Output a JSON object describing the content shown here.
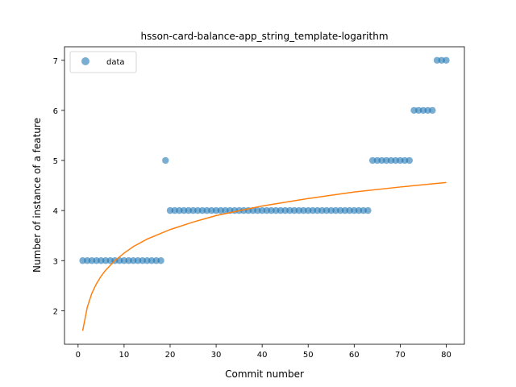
{
  "chart_data": {
    "type": "scatter",
    "title": "hsson-card-balance-app_string_template-logarithm",
    "xlabel": "Commit number",
    "ylabel": "Number of instance of a feature",
    "xlim": [
      -2.95,
      83.95
    ],
    "ylim": [
      1.33,
      7.27
    ],
    "xticks": [
      0,
      10,
      20,
      30,
      40,
      50,
      60,
      70,
      80
    ],
    "yticks": [
      2,
      3,
      4,
      5,
      6,
      7
    ],
    "legend": {
      "placement": "top-left",
      "entries": [
        "data"
      ]
    },
    "colors": {
      "data": "#1f77b4",
      "fit": "#ff7f0e"
    },
    "series": [
      {
        "name": "data",
        "kind": "scatter",
        "x": [
          1,
          2,
          3,
          4,
          5,
          6,
          7,
          8,
          9,
          10,
          11,
          12,
          13,
          14,
          15,
          16,
          17,
          18,
          19,
          20,
          21,
          22,
          23,
          24,
          25,
          26,
          27,
          28,
          29,
          30,
          31,
          32,
          33,
          34,
          35,
          36,
          37,
          38,
          39,
          40,
          41,
          42,
          43,
          44,
          45,
          46,
          47,
          48,
          49,
          50,
          51,
          52,
          53,
          54,
          55,
          56,
          57,
          58,
          59,
          60,
          61,
          62,
          63,
          64,
          65,
          66,
          67,
          68,
          69,
          70,
          71,
          72,
          73,
          74,
          75,
          76,
          77,
          78,
          79,
          80
        ],
        "y": [
          3,
          3,
          3,
          3,
          3,
          3,
          3,
          3,
          3,
          3,
          3,
          3,
          3,
          3,
          3,
          3,
          3,
          3,
          5,
          4,
          4,
          4,
          4,
          4,
          4,
          4,
          4,
          4,
          4,
          4,
          4,
          4,
          4,
          4,
          4,
          4,
          4,
          4,
          4,
          4,
          4,
          4,
          4,
          4,
          4,
          4,
          4,
          4,
          4,
          4,
          4,
          4,
          4,
          4,
          4,
          4,
          4,
          4,
          4,
          4,
          4,
          4,
          4,
          5,
          5,
          5,
          5,
          5,
          5,
          5,
          5,
          5,
          6,
          6,
          6,
          6,
          6,
          7,
          7,
          7
        ]
      },
      {
        "kind": "line",
        "x": [
          1,
          2,
          3,
          4,
          5,
          6,
          8,
          10,
          12,
          15,
          20,
          25,
          30,
          40,
          50,
          60,
          70,
          80
        ],
        "y": [
          1.6,
          2.07,
          2.35,
          2.54,
          2.69,
          2.81,
          3.0,
          3.15,
          3.28,
          3.43,
          3.62,
          3.77,
          3.9,
          4.09,
          4.24,
          4.37,
          4.47,
          4.56
        ]
      }
    ]
  }
}
